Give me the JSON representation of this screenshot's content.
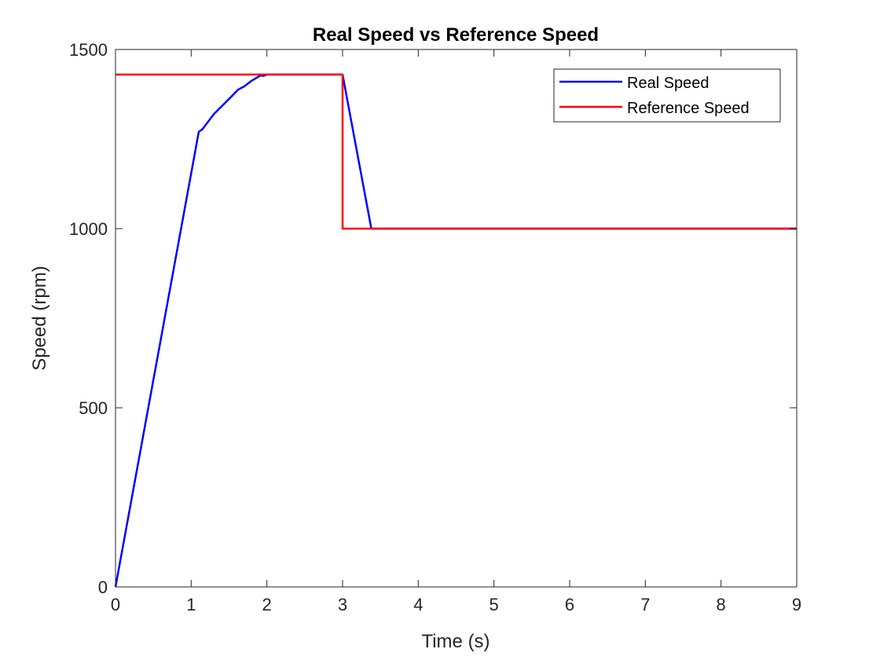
{
  "chart_data": {
    "type": "line",
    "title": "Real Speed vs Reference Speed",
    "xlabel": "Time (s)",
    "ylabel": "Speed (rpm)",
    "xlim": [
      0,
      9
    ],
    "ylim": [
      0,
      1500
    ],
    "xticks": [
      0,
      1,
      2,
      3,
      4,
      5,
      6,
      7,
      8,
      9
    ],
    "yticks": [
      0,
      500,
      1000,
      1500
    ],
    "grid": false,
    "legend_position": "top-right",
    "series": [
      {
        "name": "Real Speed",
        "color": "#0000ff",
        "x": [
          0,
          1.1,
          1.15,
          1.3,
          1.5,
          1.62,
          1.7,
          1.8,
          1.92,
          1.95,
          2.0,
          3.0,
          3.38,
          6.0,
          9.0
        ],
        "y": [
          0,
          1270,
          1278,
          1320,
          1362,
          1388,
          1397,
          1413,
          1428,
          1426,
          1430,
          1430,
          1000,
          1000,
          1000
        ]
      },
      {
        "name": "Reference Speed",
        "color": "#ff0000",
        "x": [
          0,
          3.0,
          3.0,
          9.0
        ],
        "y": [
          1430,
          1430,
          1000,
          1000
        ]
      }
    ]
  }
}
